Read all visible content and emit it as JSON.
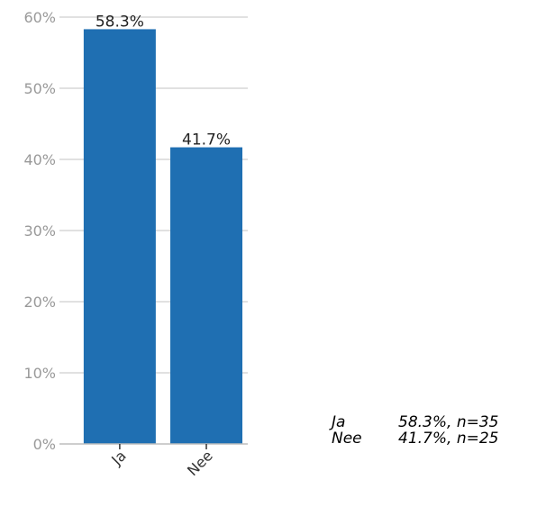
{
  "chart_data": {
    "type": "bar",
    "categories": [
      "Ja",
      "Nee"
    ],
    "values": [
      58.3,
      41.7
    ],
    "data_labels": [
      "58.3%",
      "41.7%"
    ],
    "counts": [
      35,
      25
    ],
    "title": "",
    "xlabel": "",
    "ylabel": "",
    "ylim": [
      0,
      60
    ],
    "yticks": [
      0,
      10,
      20,
      30,
      40,
      50,
      60
    ],
    "ytick_labels": [
      "0%",
      "10%",
      "20%",
      "30%",
      "40%",
      "50%",
      "60%"
    ],
    "grid": true,
    "bar_color": "#1f6fb2",
    "legend": {
      "placement": "bottom-right",
      "entries": [
        {
          "label": "Ja",
          "value_text": "58.3%, n=35"
        },
        {
          "label": "Nee",
          "value_text": "41.7%, n=25"
        }
      ]
    }
  }
}
